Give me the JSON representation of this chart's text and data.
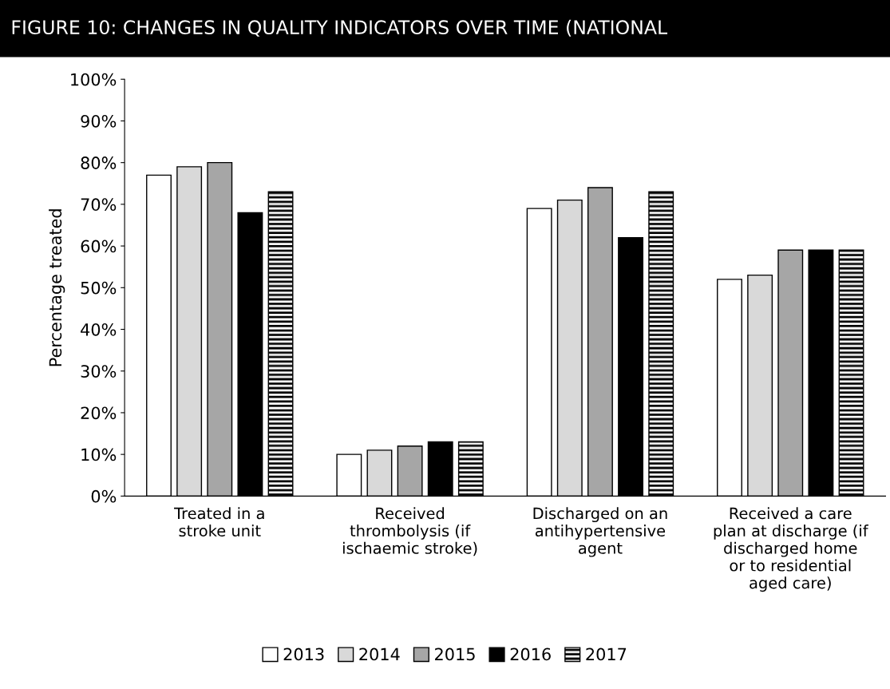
{
  "chart_data": {
    "type": "bar",
    "title": "FIGURE 10: CHANGES IN QUALITY INDICATORS OVER TIME (NATIONAL",
    "ylabel": "Percentage treated",
    "categories": [
      "Treated in a\nstroke unit",
      "Received\nthrombolysis (if\nischaemic stroke)",
      "Discharged on an\nantihypertensive\nagent",
      "Received a care\nplan at discharge (if\ndischarged home\nor to residential\naged care)"
    ],
    "series": [
      {
        "name": "2013",
        "color": "#ffffff",
        "values": [
          77,
          10,
          69,
          52
        ]
      },
      {
        "name": "2014",
        "color": "#d9d9d9",
        "values": [
          79,
          11,
          71,
          53
        ]
      },
      {
        "name": "2015",
        "color": "#a6a6a6",
        "values": [
          80,
          12,
          74,
          59
        ]
      },
      {
        "name": "2016",
        "color": "#000000",
        "values": [
          68,
          13,
          62,
          59
        ]
      },
      {
        "name": "2017",
        "color": "#000000",
        "values": [
          73,
          13,
          73,
          59
        ]
      }
    ],
    "ylim": [
      0,
      100
    ],
    "yticks": [
      {
        "value": 0,
        "label": "0%"
      },
      {
        "value": 10,
        "label": "10%"
      },
      {
        "value": 20,
        "label": "20%"
      },
      {
        "value": 30,
        "label": "30%"
      },
      {
        "value": 40,
        "label": "40%"
      },
      {
        "value": 50,
        "label": "50%"
      },
      {
        "value": 60,
        "label": "60%"
      },
      {
        "value": 70,
        "label": "70%"
      },
      {
        "value": 80,
        "label": "80%"
      },
      {
        "value": 90,
        "label": "90%"
      },
      {
        "value": 100,
        "label": "100%"
      }
    ],
    "grid": false,
    "legend": "bottom"
  }
}
